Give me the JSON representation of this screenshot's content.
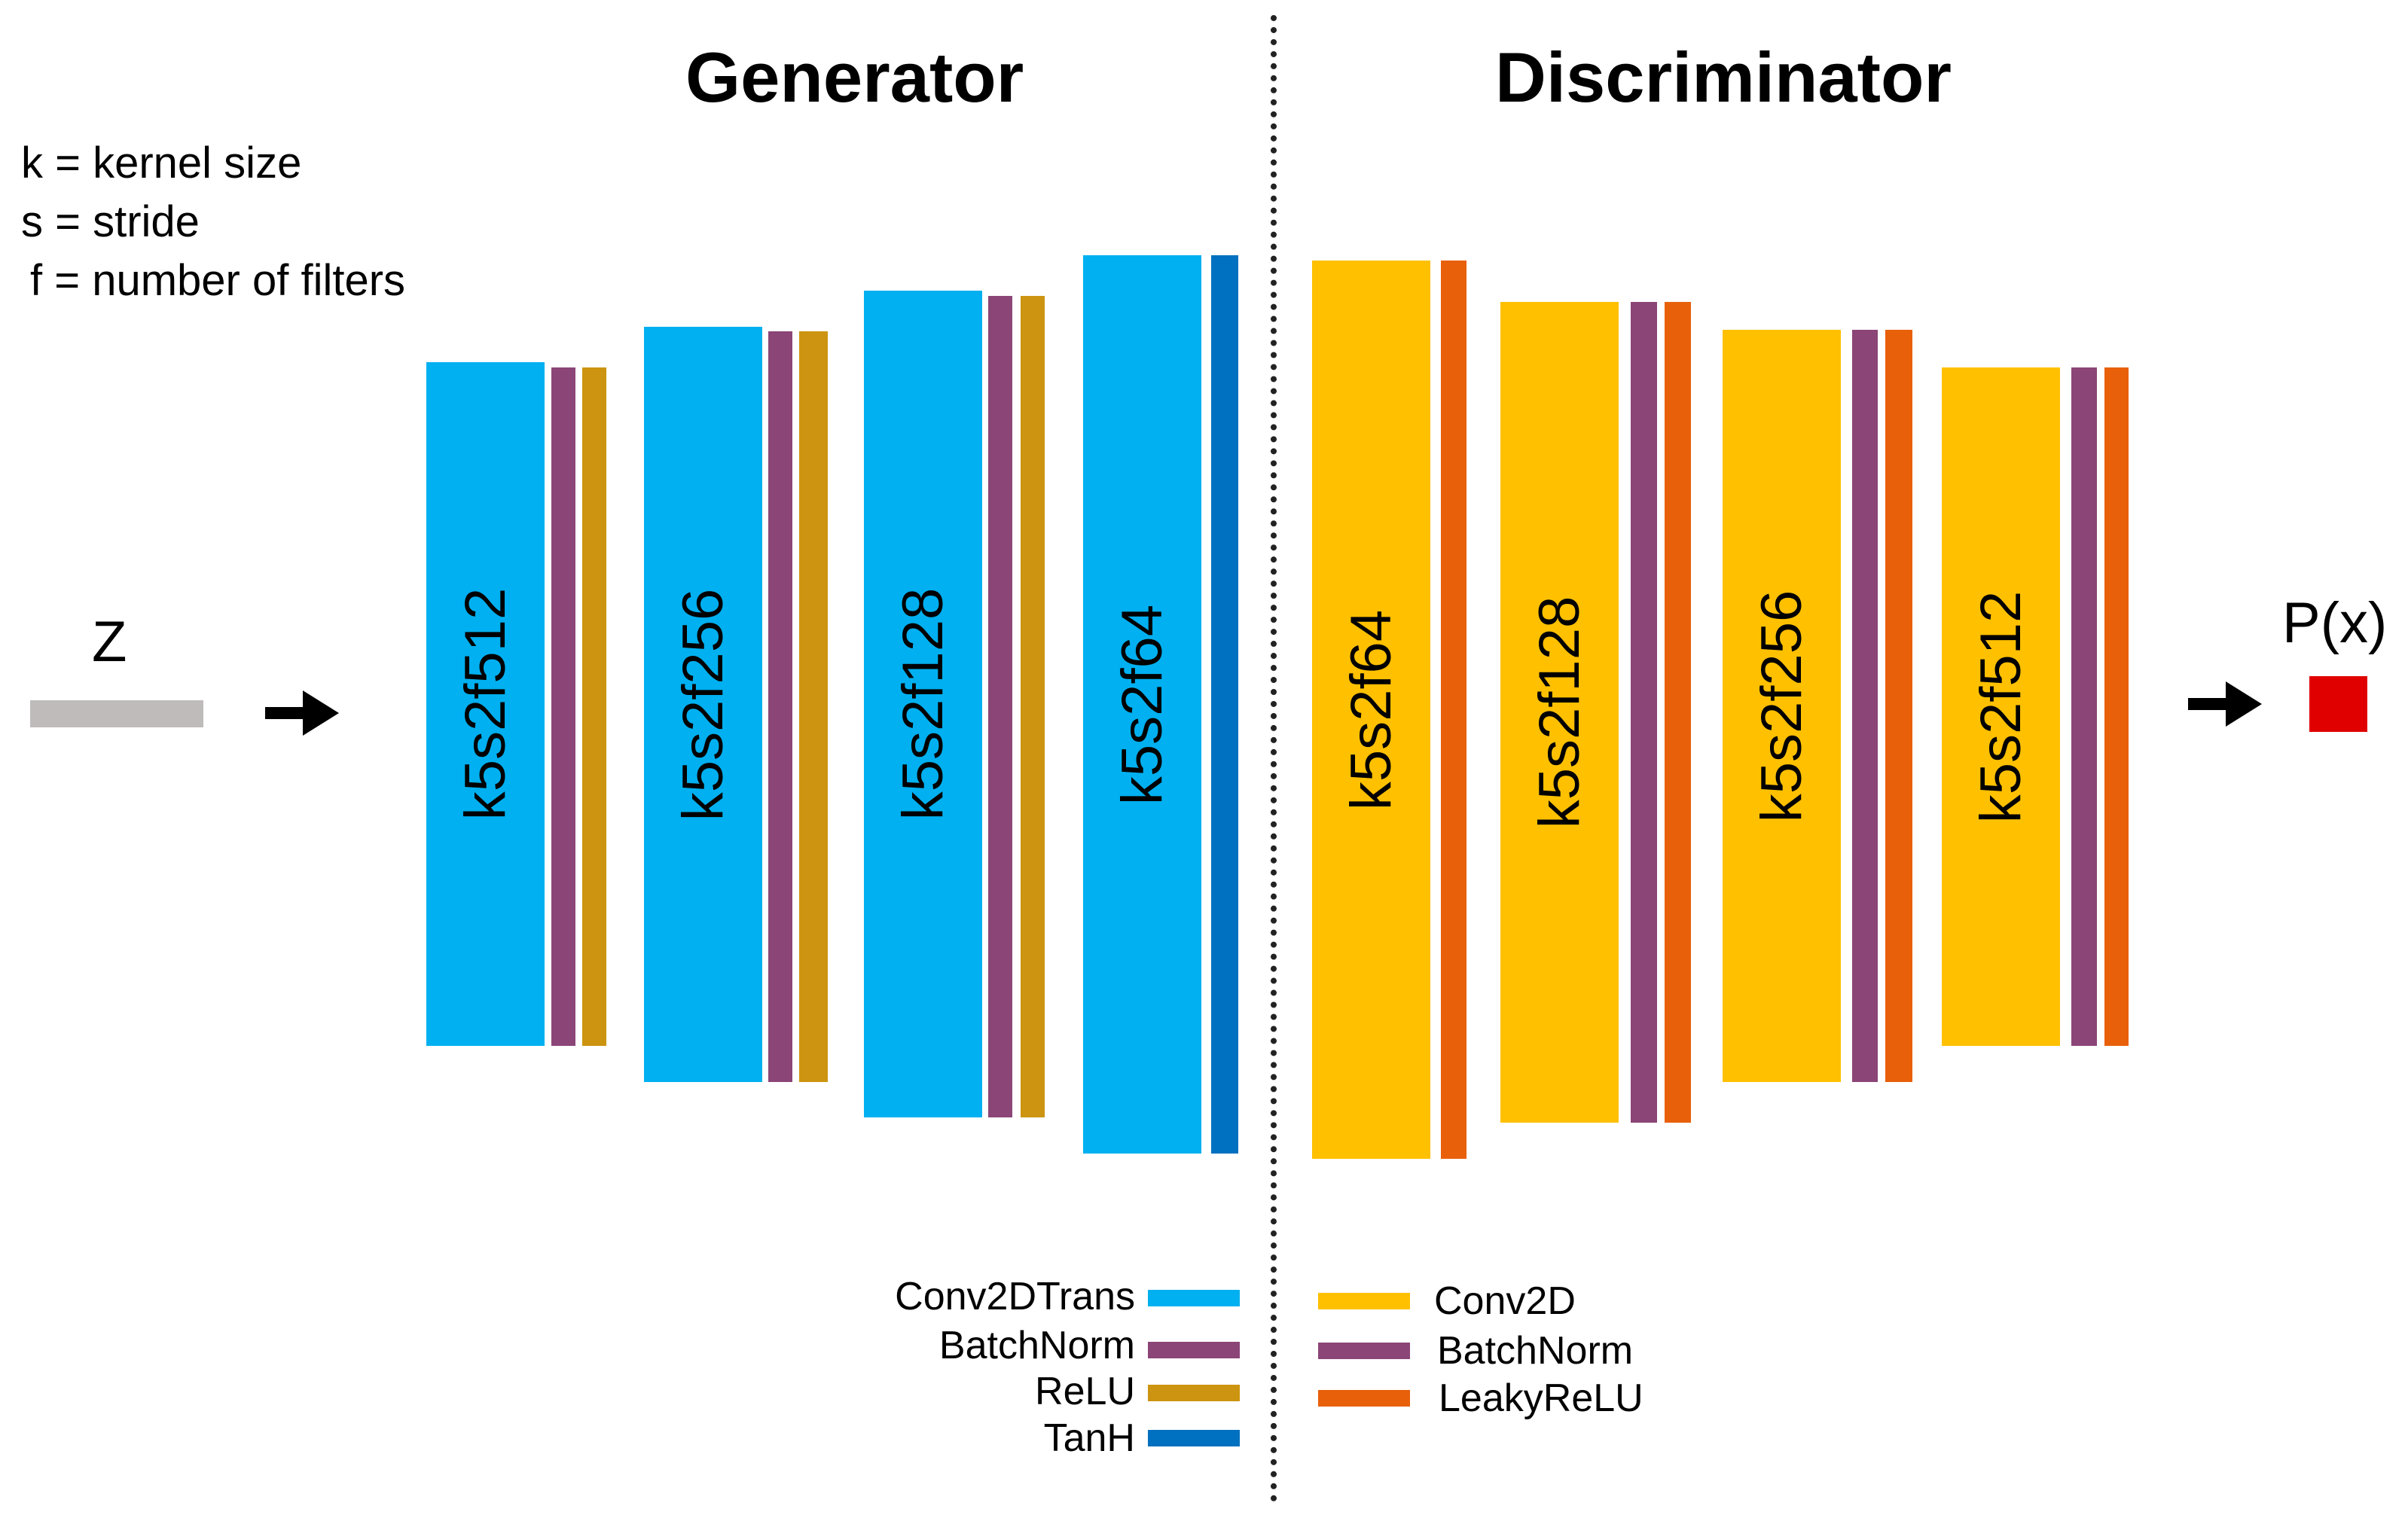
{
  "titles": {
    "generator": "Generator",
    "discriminator": "Discriminator"
  },
  "notation": {
    "k": "k = kernel size",
    "s": "s = stride",
    "f": "f = number of filters"
  },
  "io": {
    "input": "Z",
    "output": "P(x)"
  },
  "generator_blocks": [
    "k5s2f512",
    "k5s2f256",
    "k5s2f128",
    "k5s2f64"
  ],
  "discriminator_blocks": [
    "k5s2f64",
    "k5s2f128",
    "k5s2f256",
    "k5s2f512"
  ],
  "generator_legend": [
    "Conv2DTrans",
    "BatchNorm",
    "ReLU",
    "TanH"
  ],
  "discriminator_legend": [
    "Conv2D",
    "BatchNorm",
    "LeakyReLU"
  ],
  "colors": {
    "conv2dtrans": "#00B0F0",
    "batchnorm": "#8B4577",
    "relu": "#CC9410",
    "tanh": "#0070C0",
    "conv2d": "#FFC000",
    "leakyrelu": "#E8600A",
    "input_bar": "#BFBBBB",
    "output_box": "#E00000"
  }
}
